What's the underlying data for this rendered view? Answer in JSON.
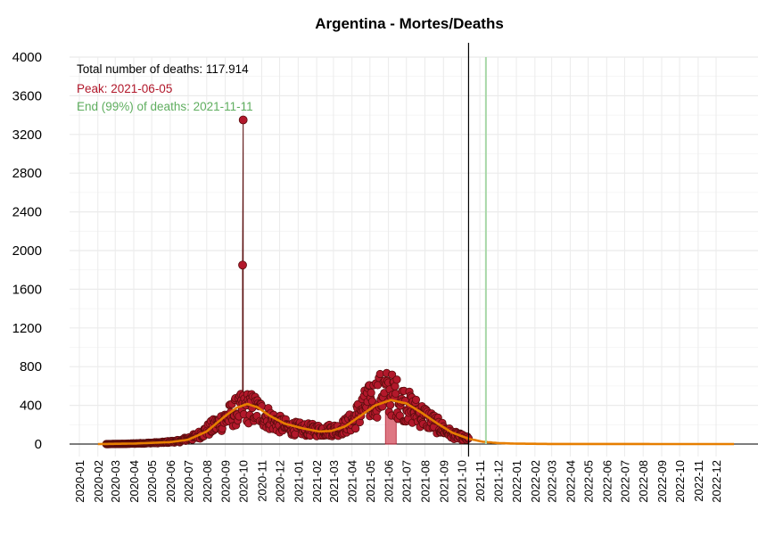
{
  "chart_data": {
    "type": "scatter",
    "title": "Argentina - Mortes/Deaths",
    "annotations": {
      "total": "Total number of deaths: 117.914",
      "peak": "Peak: 2021-06-05",
      "end": "End (99%) of deaths: 2021-11-11"
    },
    "colors": {
      "points": "#b2182b",
      "point_outline": "#5a0d0d",
      "fit_curve": "#e67e00",
      "peak_text": "#b2182b",
      "end_text": "#5fae5f",
      "end_line": "#a8d8a8",
      "today_line": "#000000",
      "grid": "#ebebeb"
    },
    "ylim": [
      0,
      4000
    ],
    "y_ticks": [
      0,
      400,
      800,
      1200,
      1600,
      2000,
      2400,
      2800,
      3200,
      3600,
      4000
    ],
    "x_range": [
      "2019-12-05",
      "2022-12-31"
    ],
    "x_ticks": [
      "2020-01",
      "2020-02",
      "2020-03",
      "2020-04",
      "2020-05",
      "2020-06",
      "2020-07",
      "2020-08",
      "2020-09",
      "2020-10",
      "2020-11",
      "2020-12",
      "2021-01",
      "2021-02",
      "2021-03",
      "2021-04",
      "2021-05",
      "2021-06",
      "2021-07",
      "2021-08",
      "2021-09",
      "2021-10",
      "2021-11",
      "2021-12",
      "2022-01",
      "2022-02",
      "2022-03",
      "2022-04",
      "2022-05",
      "2022-06",
      "2022-07",
      "2022-08",
      "2022-09",
      "2022-10",
      "2022-11",
      "2022-12"
    ],
    "today_line_date": "2021-10-13",
    "end_line_date": "2021-11-11",
    "peak_date": "2021-06-05",
    "peak_bar_value": 330,
    "observed_start": "2020-02-15",
    "observed_end": "2021-10-13",
    "spikes": [
      {
        "date": "2020-10-01",
        "value": 3350
      },
      {
        "date": "2020-09-30",
        "value": 1850
      }
    ],
    "observed_profile": [
      [
        "2020-02-15",
        0
      ],
      [
        "2020-03-15",
        2
      ],
      [
        "2020-04-15",
        8
      ],
      [
        "2020-05-15",
        15
      ],
      [
        "2020-06-15",
        30
      ],
      [
        "2020-07-15",
        80
      ],
      [
        "2020-08-15",
        190
      ],
      [
        "2020-09-01",
        260
      ],
      [
        "2020-09-20",
        340
      ],
      [
        "2020-10-05",
        380
      ],
      [
        "2020-10-20",
        360
      ],
      [
        "2020-11-05",
        300
      ],
      [
        "2020-11-25",
        220
      ],
      [
        "2020-12-15",
        170
      ],
      [
        "2021-01-10",
        150
      ],
      [
        "2021-02-10",
        140
      ],
      [
        "2021-03-10",
        150
      ],
      [
        "2021-04-01",
        230
      ],
      [
        "2021-04-20",
        380
      ],
      [
        "2021-05-10",
        480
      ],
      [
        "2021-05-25",
        540
      ],
      [
        "2021-06-10",
        500
      ],
      [
        "2021-06-25",
        430
      ],
      [
        "2021-07-10",
        360
      ],
      [
        "2021-08-01",
        280
      ],
      [
        "2021-08-25",
        180
      ],
      [
        "2021-09-15",
        100
      ],
      [
        "2021-10-13",
        50
      ]
    ],
    "fit_curve": [
      [
        "2020-02-01",
        0
      ],
      [
        "2020-04-01",
        5
      ],
      [
        "2020-06-01",
        20
      ],
      [
        "2020-07-01",
        45
      ],
      [
        "2020-08-01",
        130
      ],
      [
        "2020-09-01",
        290
      ],
      [
        "2020-09-20",
        375
      ],
      [
        "2020-10-08",
        415
      ],
      [
        "2020-10-25",
        380
      ],
      [
        "2020-11-15",
        290
      ],
      [
        "2020-12-10",
        210
      ],
      [
        "2021-01-10",
        160
      ],
      [
        "2021-02-05",
        130
      ],
      [
        "2021-02-25",
        135
      ],
      [
        "2021-03-20",
        180
      ],
      [
        "2021-04-15",
        290
      ],
      [
        "2021-05-10",
        400
      ],
      [
        "2021-06-05",
        455
      ],
      [
        "2021-07-01",
        420
      ],
      [
        "2021-07-25",
        330
      ],
      [
        "2021-08-20",
        220
      ],
      [
        "2021-09-15",
        120
      ],
      [
        "2021-10-13",
        55
      ],
      [
        "2021-11-05",
        25
      ],
      [
        "2021-12-01",
        10
      ],
      [
        "2022-01-01",
        4
      ],
      [
        "2022-03-01",
        1
      ],
      [
        "2022-12-31",
        0
      ]
    ]
  }
}
